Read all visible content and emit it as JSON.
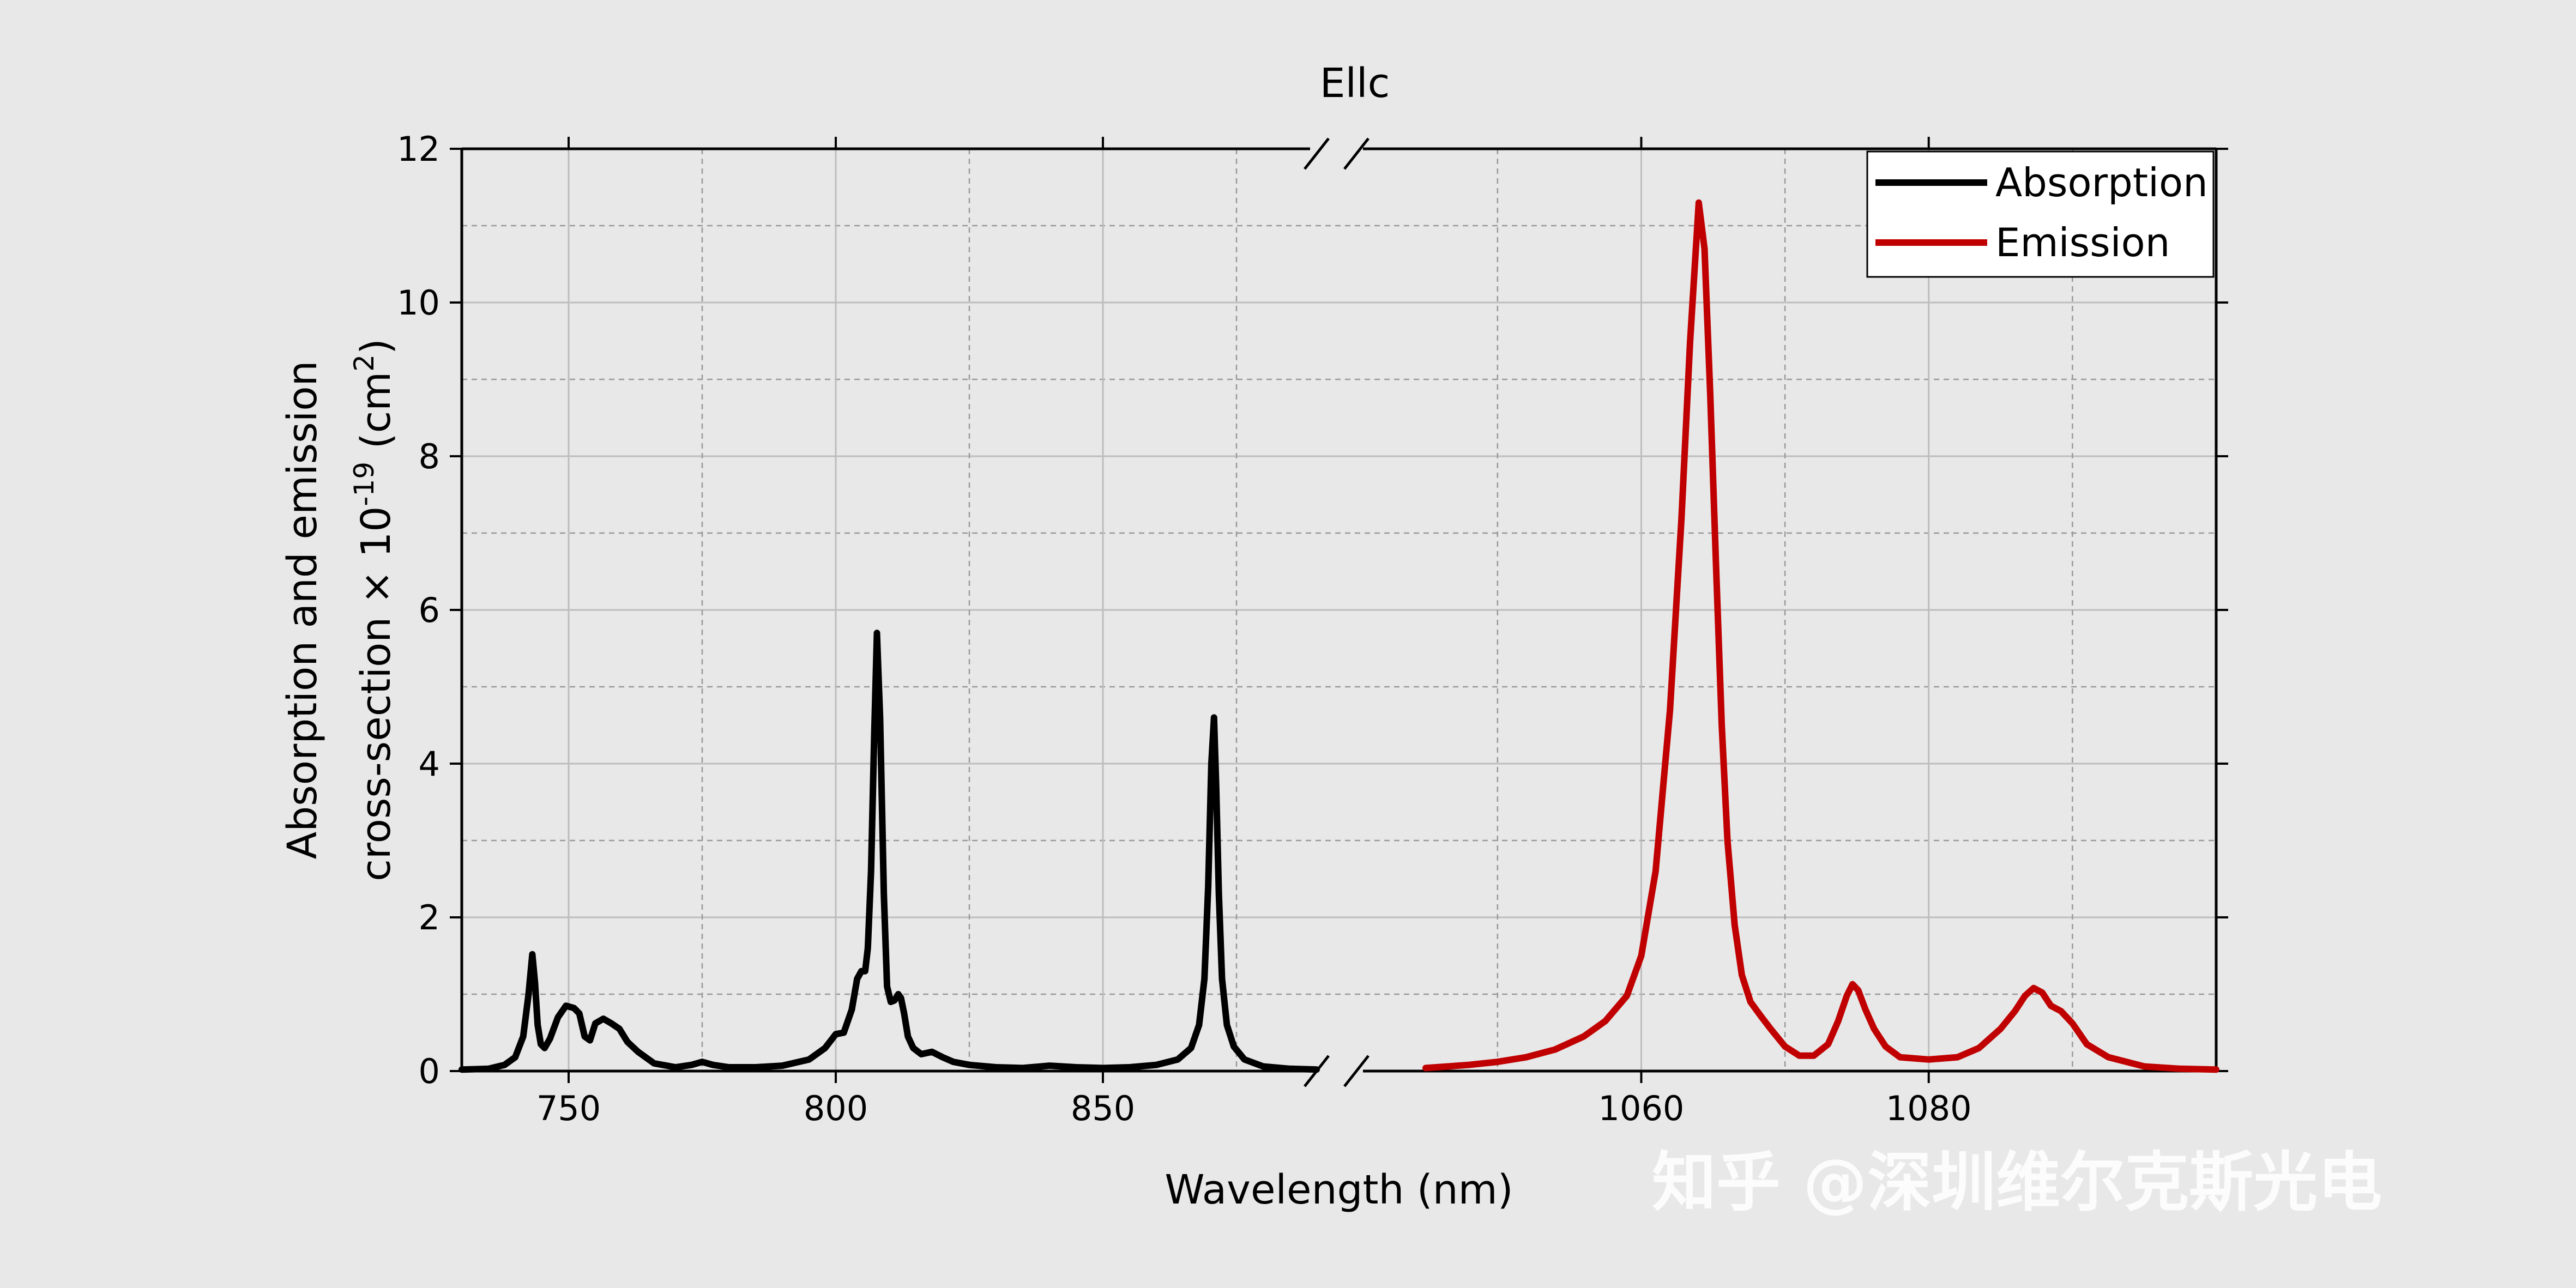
{
  "chart_data": {
    "type": "line",
    "title": "Ellc",
    "xlabel": "Wavelength (nm)",
    "ylabel_line1": "Absorption and emission",
    "ylabel_line2_prefix": "cross-section × 10",
    "ylabel_line2_exp": "-19",
    "ylabel_line2_mid": " (cm",
    "ylabel_line2_exp2": "2",
    "ylabel_line2_suffix": ")",
    "ylim": [
      0,
      12
    ],
    "yticks": [
      0,
      2,
      4,
      6,
      8,
      10,
      12
    ],
    "grid": true,
    "legend_position": "top-right",
    "x_axis_break": true,
    "x_segments": [
      {
        "xlim": [
          730,
          890
        ],
        "ticks": [
          750,
          800,
          850
        ]
      },
      {
        "xlim": [
          1045,
          1100
        ],
        "ticks": [
          1060,
          1080
        ]
      }
    ],
    "series": [
      {
        "name": "Absorption",
        "color": "#000000",
        "segment": 0,
        "x": [
          730,
          735,
          738,
          740,
          741.5,
          742.5,
          743.2,
          743.7,
          744.2,
          744.8,
          745.5,
          746.5,
          748,
          749.5,
          751,
          752,
          753,
          754,
          755,
          756.5,
          758,
          759.5,
          761,
          763,
          766,
          770,
          773,
          775,
          777,
          780,
          785,
          790,
          795,
          798,
          800,
          801.5,
          803,
          804,
          804.8,
          805.5,
          806,
          806.6,
          807.2,
          807.7,
          808.3,
          809,
          809.6,
          810.3,
          811,
          811.7,
          812.2,
          812.8,
          813.5,
          814.5,
          816,
          818,
          820,
          822,
          825,
          830,
          835,
          840,
          845,
          850,
          855,
          860,
          864,
          866.5,
          868,
          869,
          869.7,
          870.3,
          870.8,
          871.2,
          871.7,
          872.3,
          873.2,
          874.5,
          876.5,
          880,
          885,
          890
        ],
        "y": [
          0.02,
          0.03,
          0.08,
          0.18,
          0.45,
          1.0,
          1.52,
          1.15,
          0.6,
          0.35,
          0.3,
          0.42,
          0.7,
          0.85,
          0.82,
          0.75,
          0.45,
          0.4,
          0.62,
          0.68,
          0.62,
          0.55,
          0.38,
          0.25,
          0.1,
          0.05,
          0.08,
          0.12,
          0.08,
          0.05,
          0.05,
          0.07,
          0.15,
          0.3,
          0.48,
          0.5,
          0.8,
          1.2,
          1.3,
          1.3,
          1.6,
          2.6,
          4.4,
          5.7,
          4.6,
          2.3,
          1.1,
          0.9,
          0.92,
          1.0,
          0.95,
          0.75,
          0.45,
          0.3,
          0.22,
          0.25,
          0.18,
          0.12,
          0.08,
          0.05,
          0.04,
          0.07,
          0.05,
          0.04,
          0.05,
          0.08,
          0.15,
          0.3,
          0.6,
          1.2,
          2.4,
          4.0,
          4.6,
          3.7,
          2.3,
          1.2,
          0.6,
          0.32,
          0.15,
          0.06,
          0.03,
          0.02
        ]
      },
      {
        "name": "Emission",
        "color": "#c00000",
        "segment": 1,
        "x": [
          1045,
          1048,
          1050,
          1052,
          1054,
          1056,
          1057.5,
          1059,
          1060,
          1061,
          1062,
          1062.8,
          1063.4,
          1064,
          1064.4,
          1064.8,
          1065.2,
          1065.6,
          1066,
          1066.5,
          1067,
          1067.6,
          1068.3,
          1069,
          1070,
          1071,
          1072,
          1073,
          1073.7,
          1074.3,
          1074.7,
          1075.1,
          1075.6,
          1076.2,
          1077,
          1078,
          1080,
          1082,
          1083.5,
          1085,
          1086,
          1086.7,
          1087.3,
          1087.9,
          1088.5,
          1089.2,
          1090,
          1091,
          1092.5,
          1095,
          1097.5,
          1100
        ],
        "y": [
          0.04,
          0.08,
          0.12,
          0.18,
          0.28,
          0.45,
          0.65,
          0.98,
          1.5,
          2.6,
          4.7,
          7.2,
          9.5,
          11.3,
          10.7,
          8.8,
          6.6,
          4.5,
          3.0,
          1.9,
          1.25,
          0.9,
          0.72,
          0.55,
          0.32,
          0.2,
          0.2,
          0.35,
          0.65,
          0.98,
          1.13,
          1.05,
          0.8,
          0.55,
          0.32,
          0.18,
          0.15,
          0.18,
          0.3,
          0.55,
          0.78,
          0.98,
          1.08,
          1.02,
          0.85,
          0.78,
          0.62,
          0.35,
          0.18,
          0.06,
          0.03,
          0.02
        ]
      }
    ]
  },
  "watermark": {
    "text": "知乎 @深圳维尔克斯光电"
  }
}
